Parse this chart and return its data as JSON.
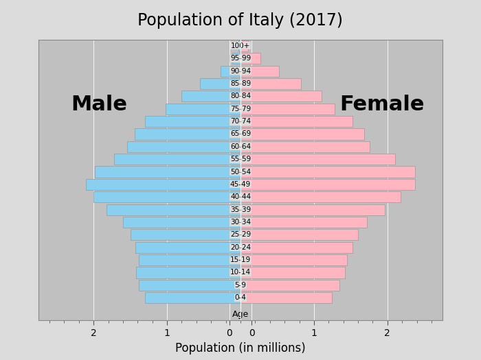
{
  "title": "Population of Italy (2017)",
  "xlabel": "Population (in millions)",
  "age_groups": [
    "0-4",
    "5-9",
    "10-14",
    "15-19",
    "20-24",
    "25-29",
    "30-34",
    "35-39",
    "40-44",
    "45-49",
    "50-54",
    "55-59",
    "60-64",
    "65-69",
    "70-74",
    "75-79",
    "80-84",
    "85-89",
    "90-94",
    "95-99",
    "100+"
  ],
  "male": [
    1.3,
    1.38,
    1.42,
    1.38,
    1.43,
    1.5,
    1.6,
    1.82,
    2.0,
    2.1,
    1.98,
    1.72,
    1.54,
    1.44,
    1.3,
    1.02,
    0.8,
    0.55,
    0.27,
    0.11,
    0.03
  ],
  "female": [
    1.24,
    1.35,
    1.42,
    1.45,
    1.52,
    1.6,
    1.72,
    1.96,
    2.18,
    2.38,
    2.38,
    2.1,
    1.76,
    1.68,
    1.52,
    1.28,
    1.1,
    0.82,
    0.52,
    0.27,
    0.1
  ],
  "male_color": "#89CFF0",
  "female_color": "#FFB6C1",
  "background_color": "#C0C0C0",
  "title_bg_color": "#DCDCDC",
  "male_label": "Male",
  "female_label": "Female",
  "xlim": 2.75,
  "male_label_fontsize": 22,
  "female_label_fontsize": 22,
  "title_fontsize": 17
}
